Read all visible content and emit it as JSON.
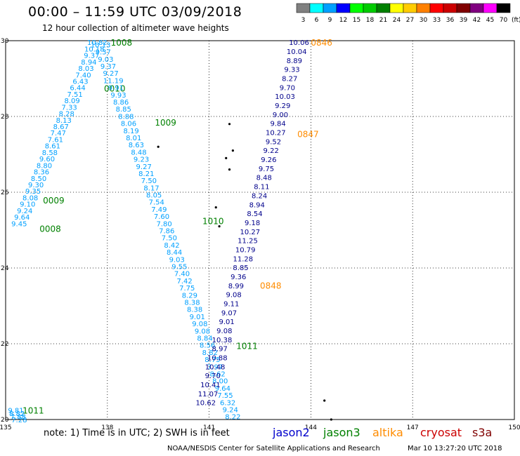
{
  "header": {
    "title": "00:00 – 11:59 UTC 03/09/2018",
    "subtitle": "12 hour collection of altimeter wave heights"
  },
  "color_scale": {
    "labels": [
      "3",
      "6",
      "9",
      "12",
      "15",
      "18",
      "21",
      "24",
      "27",
      "30",
      "33",
      "36",
      "39",
      "42",
      "45",
      "70"
    ],
    "colors": [
      "#808080",
      "#00ffff",
      "#00a0ff",
      "#0000ff",
      "#00ff00",
      "#00cc00",
      "#008000",
      "#ffff00",
      "#ffcc00",
      "#ff8000",
      "#ff0000",
      "#cc0000",
      "#800000",
      "#800080",
      "#ff00ff",
      "#000000"
    ],
    "unit": "(ft)"
  },
  "footer": {
    "note": "note:  1) Time is in UTC;  2) SWH is in feet",
    "satellites": [
      {
        "name": "jason2",
        "color": "#0000cc"
      },
      {
        "name": "jason3",
        "color": "#008000"
      },
      {
        "name": "altika",
        "color": "#ff8c00"
      },
      {
        "name": "cryosat",
        "color": "#cc0000"
      },
      {
        "name": "s3a",
        "color": "#800000"
      }
    ],
    "credit": "NOAA/NESDIS Center for Satellite Applications and Research",
    "timestamp": "Mar 10 13:27:20 UTC 2018"
  },
  "chart_data": {
    "type": "scatter",
    "xlim": [
      135,
      150
    ],
    "ylim": [
      20,
      30
    ],
    "x_ticks": [
      "135",
      "138",
      "141",
      "144",
      "147",
      "150"
    ],
    "y_ticks": [
      "20",
      "22",
      "24",
      "26",
      "28",
      "30"
    ],
    "grid": true,
    "tracks": [
      {
        "satellite": "jason3",
        "color": "#00a0ff",
        "start": [
          137.7,
          29.96
        ],
        "end": [
          135.4,
          25.18
        ],
        "values": [
          "10.82",
          "10.18",
          "9.37",
          "8.94",
          "8.03",
          "7.40",
          "6.43",
          "6.44",
          "7.51",
          "8.09",
          "7.33",
          "8.28",
          "8.13",
          "8.67",
          "7.47",
          "7.61",
          "8.61",
          "8.58",
          "9.60",
          "8.80",
          "8.36",
          "8.50",
          "9.30",
          "9.35",
          "8.08",
          "9.10",
          "9.24",
          "9.64",
          "9.45"
        ],
        "labels": [
          {
            "time": "1008",
            "at": [
              138.1,
              29.96
            ],
            "color": "#008000"
          },
          {
            "time": "0010",
            "at": [
              137.9,
              28.75
            ],
            "color": "#008000"
          },
          {
            "time": "0009",
            "at": [
              136.1,
              25.8
            ],
            "color": "#008000"
          },
          {
            "time": "0008",
            "at": [
              136.0,
              25.05
            ],
            "color": "#008000"
          }
        ]
      },
      {
        "satellite": "jason3",
        "color": "#00a0ff",
        "start": [
          137.8,
          29.9
        ],
        "end": [
          141.7,
          20.08
        ],
        "values": [
          "10.13",
          "9.37",
          "9.03",
          "9.37",
          "9.27",
          "11.19",
          "9.91",
          "9.93",
          "8.86",
          "8.85",
          "8.88",
          "8.06",
          "8.19",
          "8.01",
          "8.63",
          "8.48",
          "9.23",
          "9.27",
          "8.21",
          "7.50",
          "8.17",
          "8.05",
          "7.54",
          "7.49",
          "7.60",
          "7.80",
          "7.86",
          "7.50",
          "8.42",
          "8.44",
          "9.03",
          "9.55",
          "7.40",
          "7.42",
          "7.75",
          "8.29",
          "8.38",
          "8.38",
          "9.01",
          "9.08",
          "9.08",
          "8.84",
          "8.56",
          "8.82",
          "8.75",
          "7.97",
          "8.62",
          "8.00",
          "9.64",
          "7.55",
          "6.32",
          "9.24",
          "8.22"
        ],
        "labels": [
          {
            "time": "1009",
            "at": [
              139.4,
              27.85
            ],
            "color": "#008000"
          },
          {
            "time": "1010",
            "at": [
              140.8,
              25.25
            ],
            "color": "#008000"
          },
          {
            "time": "1011",
            "at": [
              141.8,
              21.95
            ],
            "color": "#008000"
          }
        ]
      },
      {
        "satellite": "altika",
        "color": "#00008b",
        "start": [
          143.65,
          29.96
        ],
        "end": [
          140.9,
          20.45
        ],
        "values": [
          "10.06",
          "10.04",
          "8.89",
          "9.33",
          "8.27",
          "9.70",
          "10.03",
          "9.29",
          "9.00",
          "9.84",
          "10.27",
          "9.52",
          "9.22",
          "9.26",
          "9.75",
          "8.48",
          "8.11",
          "8.24",
          "8.94",
          "8.54",
          "9.18",
          "10.27",
          "11.25",
          "10.79",
          "11.28",
          "8.85",
          "9.36",
          "8.99",
          "9.08",
          "9.11",
          "9.07",
          "9.01",
          "9.08",
          "10.38",
          "8.97",
          "10.88",
          "10.48",
          "9.70",
          "10.41",
          "11.07",
          "10.62"
        ],
        "labels": [
          {
            "time": "0846",
            "at": [
              144.0,
              29.96
            ],
            "color": "#ff8c00"
          },
          {
            "time": "0847",
            "at": [
              143.6,
              27.55
            ],
            "color": "#ff8c00"
          },
          {
            "time": "0848",
            "at": [
              142.5,
              23.55
            ],
            "color": "#ff8c00"
          }
        ]
      },
      {
        "satellite": "jason3",
        "color": "#00a0ff",
        "start": [
          135.3,
          20.25
        ],
        "end": [
          135.4,
          20.0
        ],
        "values": [
          "9.81",
          "8.82",
          "7.88",
          "7.28"
        ],
        "labels": [
          {
            "time": "1011",
            "at": [
              135.5,
              20.25
            ],
            "color": "#008000"
          }
        ]
      }
    ],
    "land": [
      [
        139.5,
        27.2
      ],
      [
        141.2,
        25.6
      ],
      [
        141.3,
        25.1
      ],
      [
        141.5,
        26.9
      ],
      [
        141.6,
        27.8
      ],
      [
        141.7,
        27.1
      ],
      [
        141.6,
        26.6
      ],
      [
        144.4,
        20.5
      ],
      [
        144.6,
        20.0
      ]
    ]
  }
}
